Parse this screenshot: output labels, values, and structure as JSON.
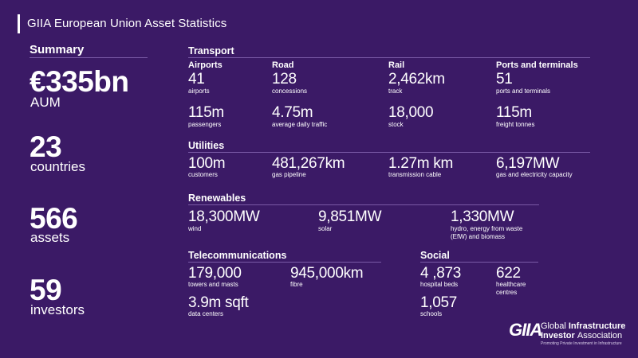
{
  "header": {
    "title": "GIIA European Union Asset Statistics"
  },
  "summary": {
    "title": "Summary",
    "aum_value": "€335bn",
    "aum_label": "AUM",
    "countries_value": "23",
    "countries_label": "countries",
    "assets_value": "566",
    "assets_label": "assets",
    "investors_value": "59",
    "investors_label": "investors"
  },
  "transport": {
    "title": "Transport",
    "airports": {
      "head": "Airports",
      "v1": "41",
      "l1": "airports",
      "v2": "115m",
      "l2": "passengers"
    },
    "road": {
      "head": "Road",
      "v1": "128",
      "l1": "concessions",
      "v2": "4.75m",
      "l2": "average daily traffic"
    },
    "rail": {
      "head": "Rail",
      "v1": "2,462km",
      "l1": "track",
      "v2": "18,000",
      "l2": "stock"
    },
    "ports": {
      "head": "Ports and terminals",
      "v1": "51",
      "l1": "ports and terminals",
      "v2": "115m",
      "l2": "freight tonnes"
    }
  },
  "utilities": {
    "title": "Utilities",
    "c1": {
      "v": "100m",
      "l": "customers"
    },
    "c2": {
      "v": "481,267km",
      "l": "gas pipeline"
    },
    "c3": {
      "v": "1.27m km",
      "l": "transmission cable"
    },
    "c4": {
      "v": "6,197MW",
      "l": "gas and electricity capacity"
    }
  },
  "renewables": {
    "title": "Renewables",
    "c1": {
      "v": "18,300MW",
      "l": "wind"
    },
    "c2": {
      "v": "9,851MW",
      "l": "solar"
    },
    "c3": {
      "v": "1,330MW",
      "l1": "hydro, energy from waste",
      "l2": "(EfW) and biomass"
    }
  },
  "telecom": {
    "title": "Telecommunications",
    "c1": {
      "v": "179,000",
      "l": "towers and masts"
    },
    "c2": {
      "v": "945,000km",
      "l": "fibre"
    },
    "c3": {
      "v": "3.9m sqft",
      "l": "data centers"
    }
  },
  "social": {
    "title": "Social",
    "c1": {
      "v": "4 ,873",
      "l": "hospital beds"
    },
    "c2": {
      "v": "622",
      "l1": "healthcare",
      "l2": "centres"
    },
    "c3": {
      "v": "1,057",
      "l": "schools"
    }
  },
  "logo": {
    "mark": "GIIA",
    "line1_a": "Global ",
    "line1_b": "Infrastructure",
    "line2_a": "Investor ",
    "line2_b": "Association",
    "tagline": "Promoting Private Investment in Infrastructure"
  },
  "colors": {
    "background": "#3b1a66",
    "rule": "#7a5aa6",
    "text": "#ffffff"
  }
}
